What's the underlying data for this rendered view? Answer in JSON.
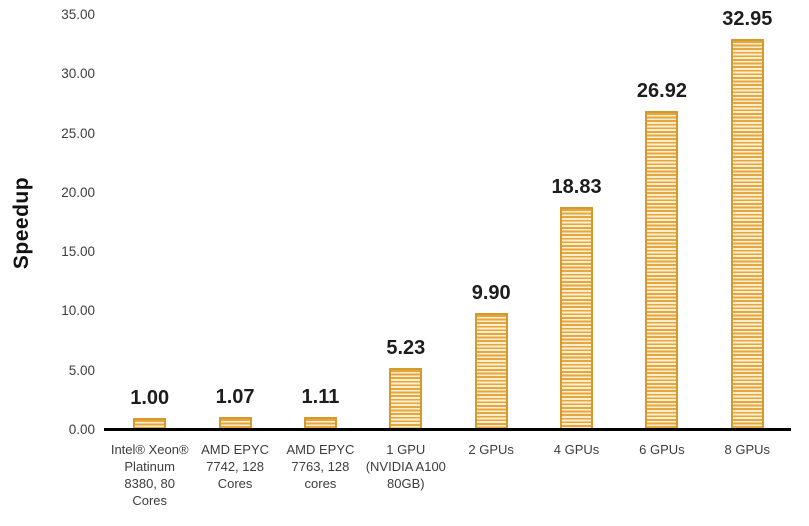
{
  "chart_data": {
    "type": "bar",
    "title": "",
    "xlabel": "",
    "ylabel": "Speedup",
    "categories": [
      "Intel® Xeon®\nPlatinum\n8380, 80\nCores",
      "AMD EPYC\n7742, 128\nCores",
      "AMD EPYC\n7763, 128\ncores",
      "1 GPU\n(NVIDIA A100\n80GB)",
      "2 GPUs",
      "4 GPUs",
      "6 GPUs",
      "8 GPUs"
    ],
    "values": [
      1.0,
      1.07,
      1.11,
      5.23,
      9.9,
      18.83,
      26.92,
      32.95
    ],
    "value_labels": [
      "1.00",
      "1.07",
      "1.11",
      "5.23",
      "9.90",
      "18.83",
      "26.92",
      "32.95"
    ],
    "ylim": [
      0,
      35
    ],
    "ytick_step": 5,
    "ytick_labels": [
      "0.00",
      "5.00",
      "10.00",
      "15.00",
      "20.00",
      "25.00",
      "30.00",
      "35.00"
    ],
    "grid": false,
    "legend_position": "none",
    "bar_colors": {
      "stripe_gold": "#e7a53d",
      "stripe_light": "#faefce",
      "border": "#d6992e"
    },
    "axis_color": "#000000",
    "label_color": "#1d1d1d",
    "tick_color": "#3d3d3d",
    "background_color": "#ffffff"
  }
}
